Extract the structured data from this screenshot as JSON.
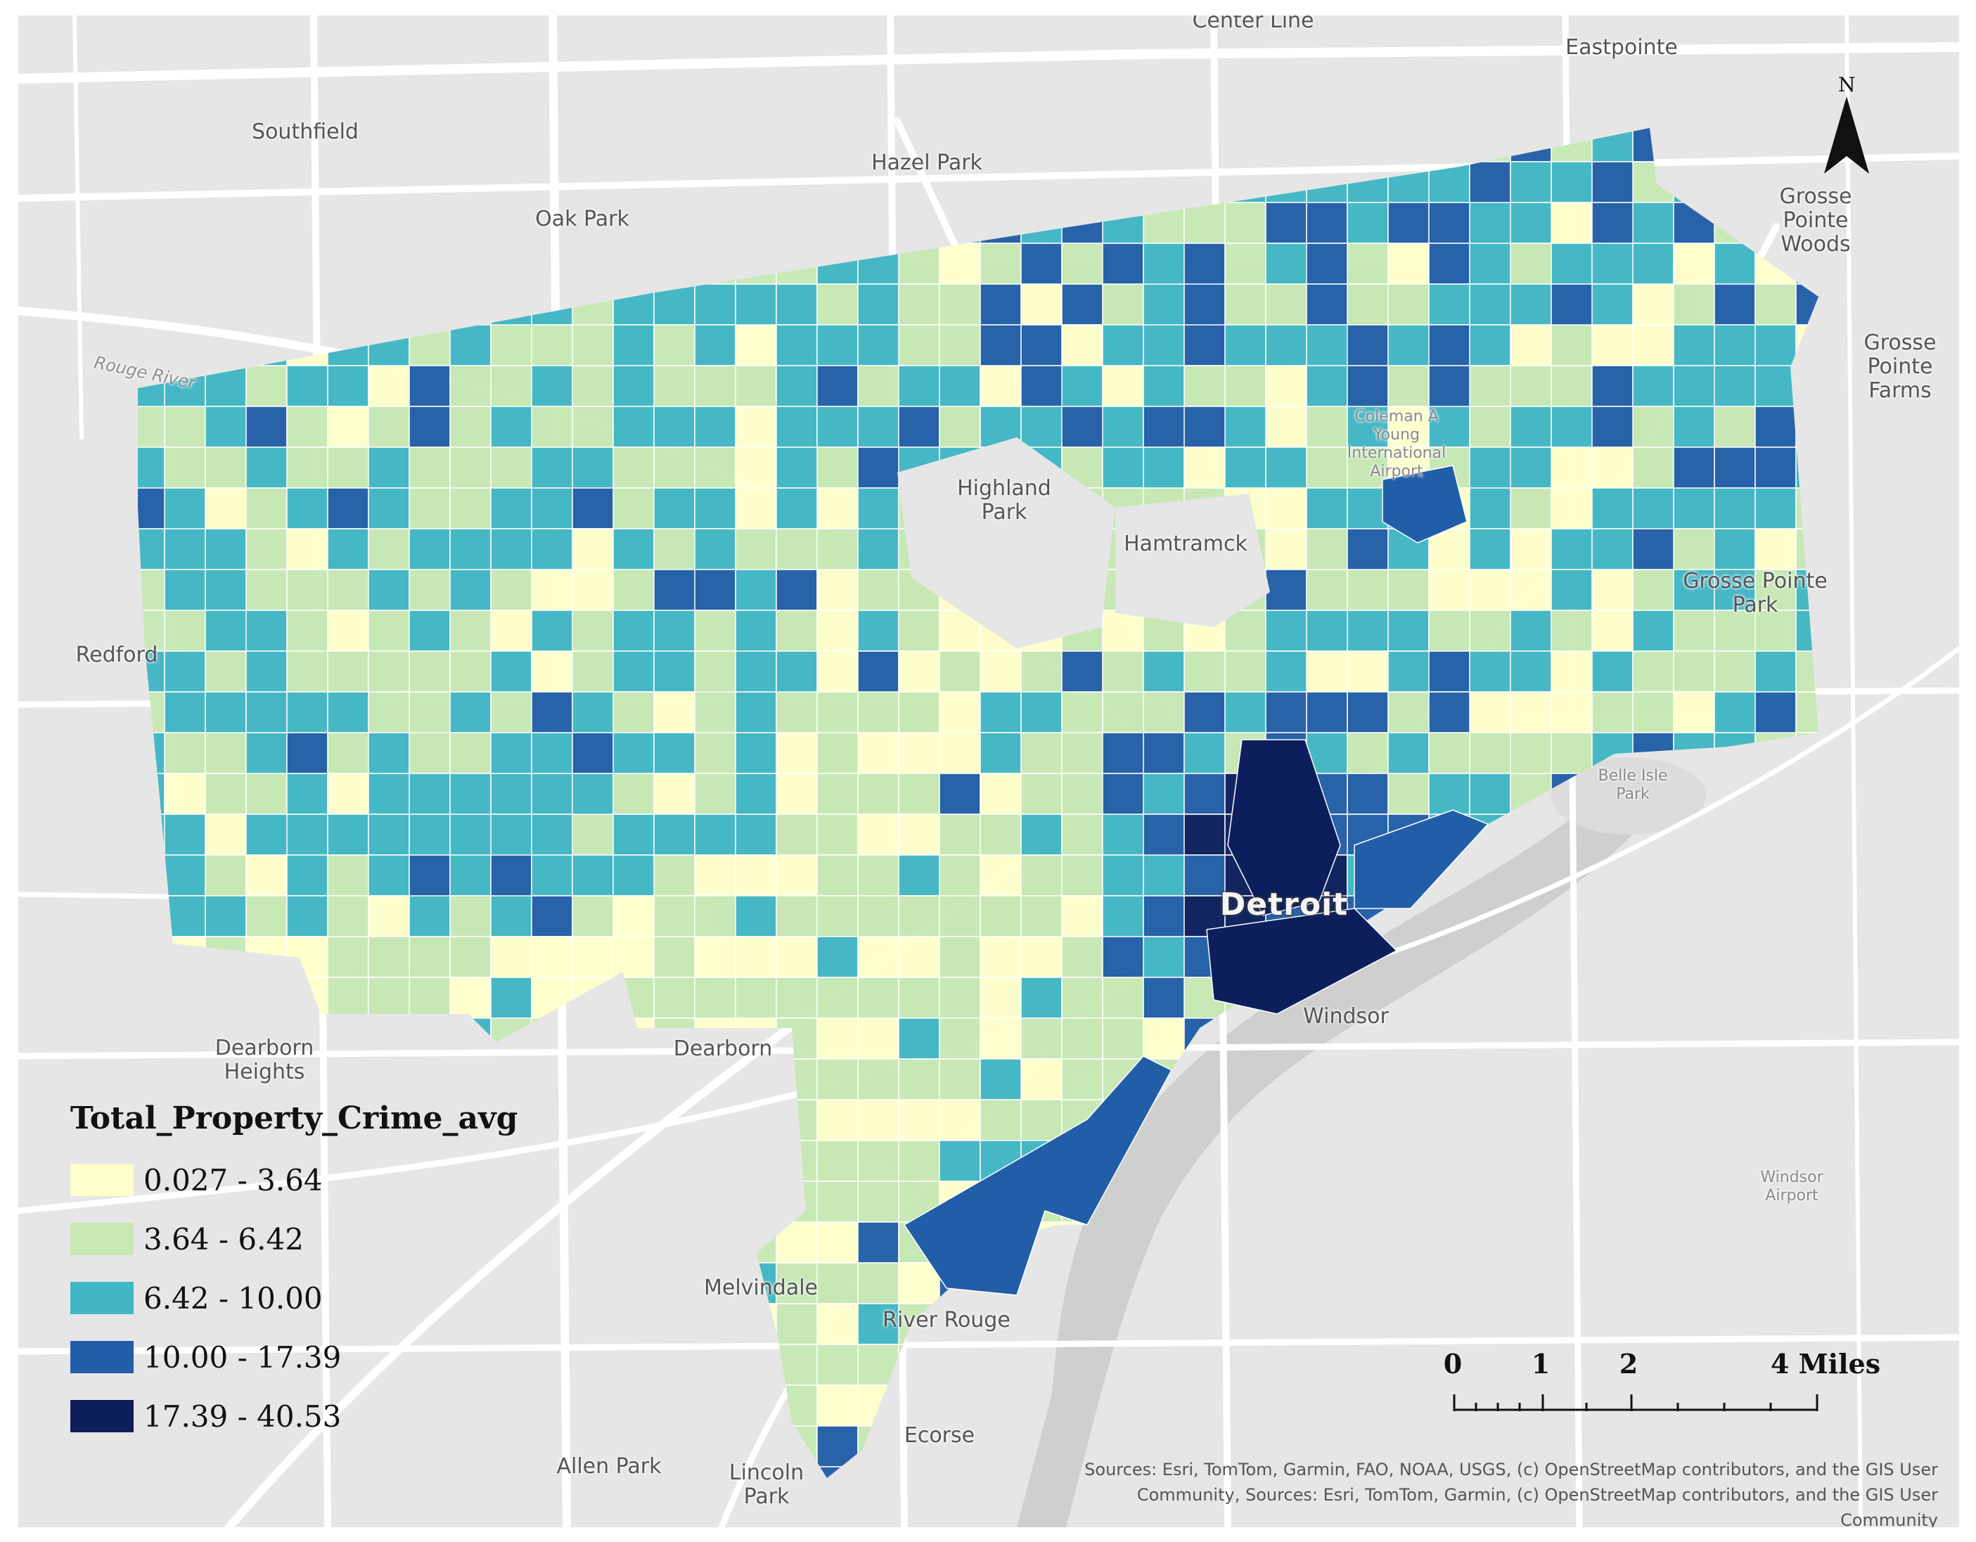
{
  "places": [
    {
      "id": "center-line",
      "label": "Center Line"
    },
    {
      "id": "eastpointe",
      "label": "Eastpointe"
    },
    {
      "id": "southfield",
      "label": "Southfield"
    },
    {
      "id": "hazel-park",
      "label": "Hazel Park"
    },
    {
      "id": "oak-park",
      "label": "Oak Park"
    },
    {
      "id": "grosse-pointe-woods",
      "label": "Grosse Pointe Woods"
    },
    {
      "id": "grosse-pointe-farms",
      "label": "Grosse Pointe Farms"
    },
    {
      "id": "rouge-river",
      "label": "Rouge River"
    },
    {
      "id": "coleman-airport",
      "label": "Coleman A Young International Airport"
    },
    {
      "id": "highland-park",
      "label": "Highland Park"
    },
    {
      "id": "hamtramck",
      "label": "Hamtramck"
    },
    {
      "id": "grosse-pointe-park",
      "label": "Grosse Pointe Park"
    },
    {
      "id": "redford",
      "label": "Redford"
    },
    {
      "id": "belle-isle-park",
      "label": "Belle Isle Park"
    },
    {
      "id": "detroit",
      "label": "Detroit"
    },
    {
      "id": "windsor",
      "label": "Windsor"
    },
    {
      "id": "dearborn-heights",
      "label": "Dearborn Heights"
    },
    {
      "id": "dearborn",
      "label": "Dearborn"
    },
    {
      "id": "windsor-airport",
      "label": "Windsor Airport"
    },
    {
      "id": "melvindale",
      "label": "Melvindale"
    },
    {
      "id": "river-rouge",
      "label": "River Rouge"
    },
    {
      "id": "ecorse",
      "label": "Ecorse"
    },
    {
      "id": "allen-park",
      "label": "Allen Park"
    },
    {
      "id": "lincoln-park",
      "label": "Lincoln Park"
    }
  ],
  "legend": {
    "title": "Total_Property_Crime_avg",
    "classes": [
      {
        "label": "0.027 - 3.64",
        "color": "#ffffcc"
      },
      {
        "label": "3.64 - 6.42",
        "color": "#c7e9b4"
      },
      {
        "label": "6.42 - 10.00",
        "color": "#41b6c4"
      },
      {
        "label": "10.00 - 17.39",
        "color": "#225ea8"
      },
      {
        "label": "17.39 - 40.53",
        "color": "#0c1f5c"
      }
    ]
  },
  "north_arrow": {
    "label": "N"
  },
  "scale_bar": {
    "labels": [
      "0",
      "1",
      "2",
      "4 Miles"
    ],
    "values": [
      0,
      1,
      2,
      4
    ],
    "unit": "Miles"
  },
  "attribution": {
    "line1": "Sources: Esri, TomTom, Garmin, FAO, NOAA, USGS, (c) OpenStreetMap contributors, and the GIS User",
    "line2": "Community, Sources: Esri, TomTom, Garmin, (c) OpenStreetMap contributors, and the GIS User Community"
  },
  "colors": {
    "basemap": "#e6e6e6",
    "roads": "#ffffff",
    "water": "#cfcfcf",
    "border": "#ffffff"
  }
}
